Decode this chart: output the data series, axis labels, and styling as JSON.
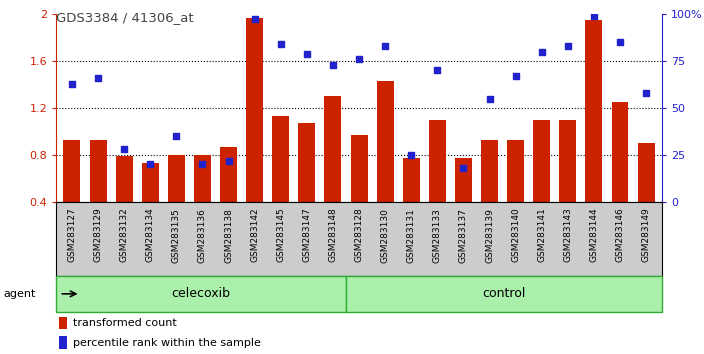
{
  "title": "GDS3384 / 41306_at",
  "categories": [
    "GSM283127",
    "GSM283129",
    "GSM283132",
    "GSM283134",
    "GSM283135",
    "GSM283136",
    "GSM283138",
    "GSM283142",
    "GSM283145",
    "GSM283147",
    "GSM283148",
    "GSM283128",
    "GSM283130",
    "GSM283131",
    "GSM283133",
    "GSM283137",
    "GSM283139",
    "GSM283140",
    "GSM283141",
    "GSM283143",
    "GSM283144",
    "GSM283146",
    "GSM283149"
  ],
  "bar_values": [
    0.93,
    0.93,
    0.79,
    0.73,
    0.8,
    0.8,
    0.87,
    1.97,
    1.13,
    1.07,
    1.3,
    0.97,
    1.43,
    0.77,
    1.1,
    0.77,
    0.93,
    0.93,
    1.1,
    1.1,
    1.95,
    1.25,
    0.9
  ],
  "scatter_values": [
    0.63,
    0.66,
    0.28,
    0.2,
    0.35,
    0.2,
    0.22,
    0.975,
    0.84,
    0.79,
    0.73,
    0.76,
    0.83,
    0.25,
    0.7,
    0.18,
    0.55,
    0.67,
    0.8,
    0.83,
    0.99,
    0.85,
    0.58
  ],
  "celecoxib_count": 11,
  "control_count": 12,
  "bar_color": "#cc2200",
  "scatter_color": "#2222cc",
  "bar_bottom": 0.4,
  "ylim_left": [
    0.4,
    2.0
  ],
  "ylim_right": [
    0.0,
    1.0
  ],
  "yticks_left": [
    0.4,
    0.8,
    1.2,
    1.6,
    2.0
  ],
  "ytick_labels_left": [
    "0.4",
    "0.8",
    "1.2",
    "1.6",
    "2"
  ],
  "yticks_right": [
    0.0,
    0.25,
    0.5,
    0.75,
    1.0
  ],
  "ytick_labels_right": [
    "0",
    "25",
    "50",
    "75",
    "100%"
  ],
  "hlines": [
    0.8,
    1.2,
    1.6
  ],
  "celecoxib_label": "celecoxib",
  "control_label": "control",
  "agent_label": "agent",
  "legend_bar_label": "transformed count",
  "legend_scatter_label": "percentile rank within the sample",
  "group_box_color": "#aaf0aa",
  "group_box_edge": "#33aa33",
  "tick_bg_color": "#cccccc",
  "title_color": "#444444"
}
